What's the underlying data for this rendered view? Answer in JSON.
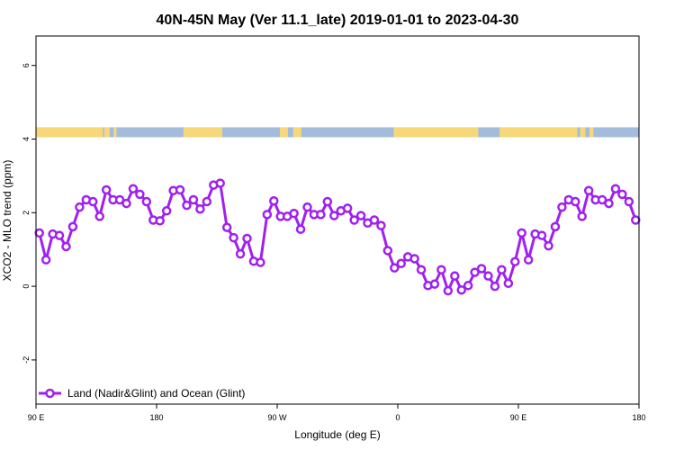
{
  "chart_data": {
    "type": "line",
    "title": "40N-45N May (Ver 11.1_late)   2019-01-01 to 2023-04-30",
    "xlabel": "Longitude (deg E)",
    "ylabel": "XCO2 - MLO trend (ppm)",
    "x_ticks": [
      {
        "value": 90,
        "label": "90 E"
      },
      {
        "value": 180,
        "label": "180"
      },
      {
        "value": 270,
        "label": "90 W"
      },
      {
        "value": 360,
        "label": "0"
      },
      {
        "value": 450,
        "label": "90 E"
      },
      {
        "value": 540,
        "label": "180"
      }
    ],
    "y_ticks": [
      -2,
      0,
      2,
      4,
      6
    ],
    "xlim": [
      90,
      540
    ],
    "ylim": [
      -3.2,
      6.8
    ],
    "series": [
      {
        "name": "Land (Nadir&Glint) and Ocean (Glint)",
        "color": "#a020f0",
        "x": [
          92.5,
          97.5,
          102.5,
          107.5,
          112.5,
          117.5,
          122.5,
          127.5,
          132.5,
          137.5,
          142.5,
          147.5,
          152.5,
          157.5,
          162.5,
          167.5,
          172.5,
          177.5,
          182.5,
          187.5,
          192.5,
          197.5,
          202.5,
          207.5,
          212.5,
          217.5,
          222.5,
          227.5,
          232.5,
          237.5,
          242.5,
          247.5,
          252.5,
          257.5,
          262.5,
          267.5,
          272.5,
          277.5,
          282.5,
          287.5,
          292.5,
          297.5,
          302.5,
          307.5,
          312.5,
          317.5,
          322.5,
          327.5,
          332.5,
          337.5,
          342.5,
          347.5,
          352.5,
          357.5,
          362.5,
          367.5,
          372.5,
          377.5,
          382.5,
          387.5,
          392.5,
          397.5,
          402.5,
          407.5,
          412.5,
          417.5,
          422.5,
          427.5,
          432.5,
          437.5,
          442.5,
          447.5,
          452.5,
          457.5,
          462.5,
          467.5,
          472.5,
          477.5,
          482.5,
          487.5,
          492.5,
          497.5,
          502.5,
          507.5,
          512.5,
          517.5,
          522.5,
          527.5,
          532.5,
          537.5
        ],
        "values": [
          1.45,
          0.72,
          1.42,
          1.38,
          1.08,
          1.62,
          2.15,
          2.35,
          2.3,
          1.9,
          2.62,
          2.35,
          2.35,
          2.25,
          2.65,
          2.5,
          2.3,
          1.8,
          1.78,
          2.05,
          2.6,
          2.62,
          2.2,
          2.35,
          2.1,
          2.3,
          2.75,
          2.8,
          1.6,
          1.32,
          0.88,
          1.3,
          0.68,
          0.65,
          1.95,
          2.32,
          1.9,
          1.9,
          1.98,
          1.55,
          2.15,
          1.95,
          1.95,
          2.3,
          1.92,
          2.05,
          2.12,
          1.8,
          1.92,
          1.72,
          1.8,
          1.65,
          0.97,
          0.5,
          0.62,
          0.8,
          0.75,
          0.45,
          0.02,
          0.06,
          0.45,
          -0.12,
          0.28,
          -0.1,
          0.02,
          0.38,
          0.48,
          0.28,
          0.0,
          0.45,
          0.08,
          0.67,
          1.45,
          0.72,
          1.42,
          1.38,
          1.1,
          1.62,
          2.15,
          2.35,
          2.3,
          1.9,
          2.6,
          2.35,
          2.35,
          2.25,
          2.65,
          2.5,
          2.3,
          1.8
        ]
      }
    ],
    "surface_band": {
      "y_range": [
        4.05,
        4.32
      ],
      "ocean_color": "#a4bcdc",
      "land_color": "#f7d879",
      "land_segments": [
        [
          90,
          140
        ],
        [
          141,
          145
        ],
        [
          148,
          150
        ],
        [
          200,
          229
        ],
        [
          272,
          278
        ],
        [
          282,
          288
        ],
        [
          357,
          420
        ],
        [
          436,
          494
        ],
        [
          496,
          500
        ],
        [
          503,
          506
        ]
      ]
    },
    "legend": {
      "position": "bottom-left"
    }
  }
}
